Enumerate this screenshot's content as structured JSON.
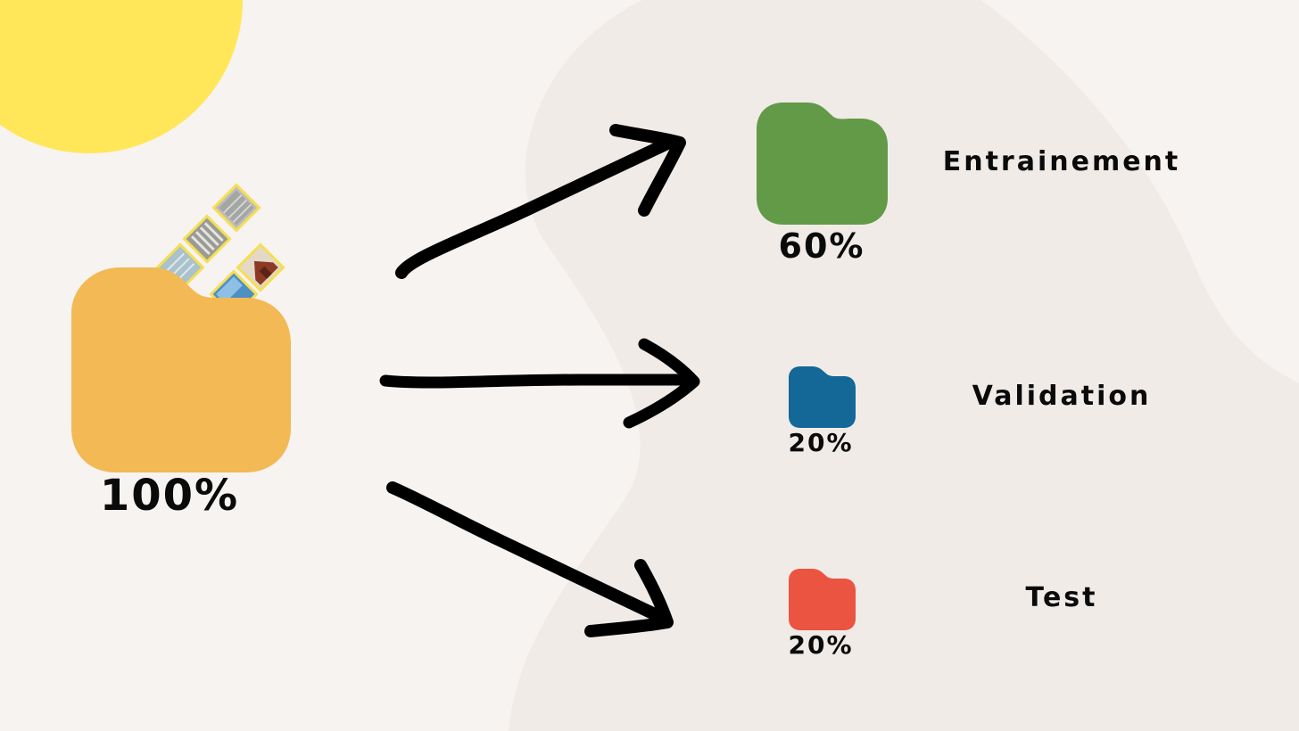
{
  "source": {
    "percent": "100%",
    "color": "#f2b955"
  },
  "splits": [
    {
      "label": "Entrainement",
      "percent": "60%",
      "color": "#629a48"
    },
    {
      "label": "Validation",
      "percent": "20%",
      "color": "#136897"
    },
    {
      "label": "Test",
      "percent": "20%",
      "color": "#eb5440"
    }
  ],
  "colors": {
    "background": "#f7f3f0",
    "blob": "#f0ebe7",
    "sun": "#ffe759",
    "arrow": "#000000",
    "photo_border": "#f5de55"
  }
}
